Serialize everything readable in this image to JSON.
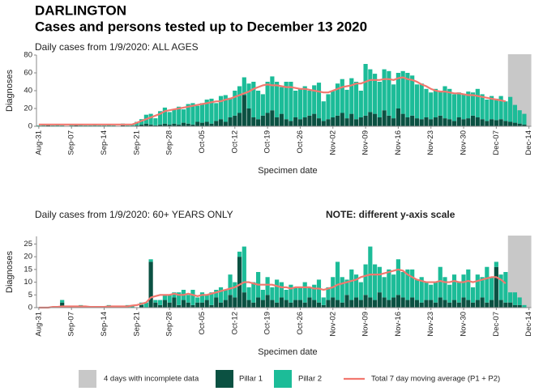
{
  "header": {
    "title": "DARLINGTON",
    "subtitle": "Cases and persons tested up to December 13 2020"
  },
  "chart_data": [
    {
      "type": "bar",
      "stacked": true,
      "subtitle": "Daily cases from 1/9/2020: ALL AGES",
      "xlabel": "Specimen date",
      "ylabel": "Diagnoses",
      "categories": [
        "Aug-31",
        null,
        null,
        null,
        null,
        null,
        null,
        "Sep-07",
        null,
        null,
        null,
        null,
        null,
        null,
        "Sep-14",
        null,
        null,
        null,
        null,
        null,
        null,
        "Sep-21",
        null,
        null,
        null,
        null,
        null,
        null,
        "Sep-28",
        null,
        null,
        null,
        null,
        null,
        null,
        "Oct-05",
        null,
        null,
        null,
        null,
        null,
        null,
        "Oct-12",
        null,
        null,
        null,
        null,
        null,
        null,
        "Oct-19",
        null,
        null,
        null,
        null,
        null,
        null,
        "Oct-26",
        null,
        null,
        null,
        null,
        null,
        null,
        "Nov-02",
        null,
        null,
        null,
        null,
        null,
        null,
        "Nov-09",
        null,
        null,
        null,
        null,
        null,
        null,
        "Nov-16",
        null,
        null,
        null,
        null,
        null,
        null,
        "Nov-23",
        null,
        null,
        null,
        null,
        null,
        null,
        "Nov-30",
        null,
        null,
        null,
        null,
        null,
        null,
        "Dec-07",
        null,
        null,
        null,
        null,
        null,
        null,
        "Dec-14"
      ],
      "series": [
        {
          "name": "Pillar 1",
          "color": "#0b5142",
          "values": [
            0,
            0,
            1,
            0,
            0,
            0,
            0,
            0,
            1,
            0,
            0,
            0,
            0,
            0,
            0,
            0,
            0,
            0,
            1,
            0,
            0,
            1,
            2,
            3,
            2,
            1,
            2,
            3,
            2,
            3,
            2,
            4,
            3,
            2,
            5,
            4,
            5,
            3,
            6,
            8,
            5,
            10,
            12,
            15,
            35,
            20,
            10,
            8,
            12,
            15,
            18,
            10,
            14,
            8,
            6,
            10,
            8,
            10,
            12,
            14,
            9,
            6,
            8,
            10,
            12,
            15,
            9,
            14,
            8,
            10,
            12,
            16,
            14,
            10,
            18,
            12,
            9,
            20,
            14,
            10,
            12,
            9,
            8,
            10,
            8,
            10,
            12,
            9,
            8,
            6,
            10,
            8,
            9,
            12,
            10,
            8,
            6,
            8,
            7,
            8,
            6,
            5,
            4,
            3,
            2,
            null
          ]
        },
        {
          "name": "Pillar 2",
          "color": "#1cbc98",
          "values": [
            1,
            2,
            1,
            1,
            2,
            1,
            0,
            2,
            1,
            2,
            1,
            1,
            2,
            1,
            1,
            2,
            1,
            0,
            2,
            1,
            2,
            4,
            6,
            10,
            12,
            8,
            15,
            18,
            14,
            16,
            20,
            15,
            22,
            24,
            18,
            22,
            25,
            28,
            20,
            26,
            30,
            22,
            28,
            30,
            20,
            28,
            40,
            32,
            24,
            35,
            38,
            40,
            30,
            42,
            44,
            30,
            34,
            35,
            28,
            32,
            40,
            22,
            28,
            30,
            36,
            38,
            32,
            40,
            42,
            30,
            58,
            48,
            45,
            40,
            46,
            50,
            38,
            40,
            48,
            50,
            45,
            38,
            40,
            32,
            30,
            32,
            28,
            36,
            34,
            30,
            28,
            28,
            30,
            26,
            32,
            28,
            24,
            26,
            24,
            26,
            22,
            28,
            20,
            15,
            12,
            null
          ]
        },
        {
          "name": "Total 7 day moving average (P1 + P2)",
          "type": "line",
          "color": "#f2786f",
          "values": [
            2,
            2,
            2,
            2,
            2,
            2,
            2,
            2,
            2,
            2,
            2,
            2,
            2,
            2,
            2,
            2,
            2,
            2,
            2,
            2,
            2,
            4,
            6,
            8,
            10,
            12,
            14,
            17,
            18,
            19,
            20,
            21,
            22,
            23,
            24,
            25,
            26,
            27,
            28,
            28,
            30,
            31,
            33,
            35,
            37,
            39,
            42,
            44,
            46,
            47,
            46,
            46,
            45,
            44,
            44,
            43,
            42,
            42,
            41,
            40,
            39,
            38,
            38,
            40,
            42,
            44,
            45,
            46,
            48,
            48,
            50,
            52,
            52,
            52,
            53,
            53,
            52,
            54,
            55,
            53,
            52,
            50,
            47,
            45,
            42,
            40,
            39,
            39,
            38,
            37,
            37,
            36,
            35,
            35,
            34,
            33,
            32,
            31,
            30,
            29,
            28,
            null,
            null,
            null,
            null,
            null
          ]
        }
      ],
      "ylim": [
        0,
        80
      ],
      "yticks": [
        0,
        20,
        40,
        60,
        80
      ],
      "incomplete_days": 4,
      "incomplete_label": "4 days with incomplete data",
      "incomplete_color": "#c8c8c8"
    },
    {
      "type": "bar",
      "stacked": true,
      "subtitle": "Daily cases from 1/9/2020: 60+ YEARS ONLY",
      "note": "NOTE: different y-axis scale",
      "xlabel": "Specimen date",
      "ylabel": "Diagnoses",
      "categories": [
        "Aug-31",
        null,
        null,
        null,
        null,
        null,
        null,
        "Sep-07",
        null,
        null,
        null,
        null,
        null,
        null,
        "Sep-14",
        null,
        null,
        null,
        null,
        null,
        null,
        "Sep-21",
        null,
        null,
        null,
        null,
        null,
        null,
        "Sep-28",
        null,
        null,
        null,
        null,
        null,
        null,
        "Oct-05",
        null,
        null,
        null,
        null,
        null,
        null,
        "Oct-12",
        null,
        null,
        null,
        null,
        null,
        null,
        "Oct-19",
        null,
        null,
        null,
        null,
        null,
        null,
        "Oct-26",
        null,
        null,
        null,
        null,
        null,
        null,
        "Nov-02",
        null,
        null,
        null,
        null,
        null,
        null,
        "Nov-09",
        null,
        null,
        null,
        null,
        null,
        null,
        "Nov-16",
        null,
        null,
        null,
        null,
        null,
        null,
        "Nov-23",
        null,
        null,
        null,
        null,
        null,
        null,
        "Nov-30",
        null,
        null,
        null,
        null,
        null,
        null,
        "Dec-07",
        null,
        null,
        null,
        null,
        null,
        null,
        "Dec-14"
      ],
      "series": [
        {
          "color": "#0b5142",
          "values": [
            0,
            0,
            0,
            0,
            0,
            2,
            0,
            0,
            0,
            0,
            0,
            0,
            0,
            0,
            0,
            0,
            0,
            0,
            0,
            0,
            0,
            0,
            1,
            0,
            18,
            2,
            1,
            3,
            2,
            4,
            1,
            3,
            2,
            1,
            2,
            2,
            3,
            1,
            4,
            2,
            3,
            5,
            4,
            20,
            6,
            3,
            2,
            4,
            3,
            5,
            3,
            2,
            4,
            3,
            2,
            3,
            3,
            2,
            4,
            3,
            2,
            1,
            3,
            4,
            3,
            2,
            5,
            3,
            4,
            3,
            5,
            4,
            3,
            6,
            4,
            3,
            4,
            5,
            4,
            3,
            4,
            3,
            2,
            3,
            3,
            2,
            4,
            3,
            2,
            3,
            2,
            4,
            3,
            2,
            3,
            4,
            2,
            3,
            16,
            3,
            2,
            2,
            1,
            1,
            0,
            null
          ]
        },
        {
          "color": "#1cbc98",
          "values": [
            0,
            0,
            0,
            0,
            0,
            1,
            0,
            0,
            0,
            1,
            0,
            0,
            0,
            0,
            0,
            1,
            0,
            0,
            0,
            1,
            1,
            0,
            1,
            2,
            1,
            1,
            2,
            2,
            3,
            2,
            5,
            4,
            3,
            6,
            2,
            4,
            2,
            5,
            3,
            6,
            4,
            8,
            6,
            2,
            18,
            5,
            8,
            10,
            4,
            7,
            5,
            9,
            6,
            4,
            7,
            5,
            5,
            8,
            4,
            6,
            9,
            3,
            5,
            8,
            15,
            10,
            6,
            12,
            9,
            7,
            12,
            20,
            14,
            10,
            8,
            12,
            9,
            14,
            10,
            12,
            11,
            8,
            10,
            7,
            6,
            8,
            12,
            9,
            7,
            10,
            8,
            9,
            12,
            6,
            10,
            8,
            14,
            9,
            2,
            10,
            12,
            4,
            5,
            3,
            1,
            null
          ]
        },
        {
          "type": "line",
          "color": "#f2786f",
          "values": [
            0,
            0,
            0,
            0.3,
            0.3,
            0.5,
            0.5,
            0.5,
            0.5,
            0.5,
            0.5,
            0.3,
            0.3,
            0.3,
            0.3,
            0.5,
            0.5,
            0.5,
            0.5,
            0.5,
            0.8,
            1,
            1.5,
            2,
            4,
            4.5,
            5,
            5,
            5,
            5.5,
            5,
            5,
            5.5,
            5,
            4.5,
            5,
            5,
            5.5,
            6,
            6.5,
            7,
            7.5,
            8,
            9,
            10,
            10,
            9.5,
            9,
            9,
            9,
            9,
            8.5,
            8,
            8,
            7.5,
            8,
            8,
            8,
            8,
            7.5,
            7.5,
            7,
            7.5,
            8,
            9,
            9.5,
            10,
            10.5,
            11,
            12,
            12.5,
            13,
            13,
            13,
            13.5,
            14,
            14.5,
            15,
            14.5,
            13,
            12,
            11,
            10.5,
            10,
            10,
            10,
            10.5,
            10,
            10,
            10.5,
            10,
            10,
            10.5,
            10,
            10.5,
            11,
            11.5,
            12,
            12,
            11,
            9.5,
            null,
            null,
            null,
            null,
            null
          ]
        }
      ],
      "ylim": [
        0,
        28
      ],
      "yticks": [
        0,
        5,
        10,
        15,
        20,
        25
      ],
      "incomplete_days": 4,
      "incomplete_color": "#c8c8c8"
    }
  ]
}
